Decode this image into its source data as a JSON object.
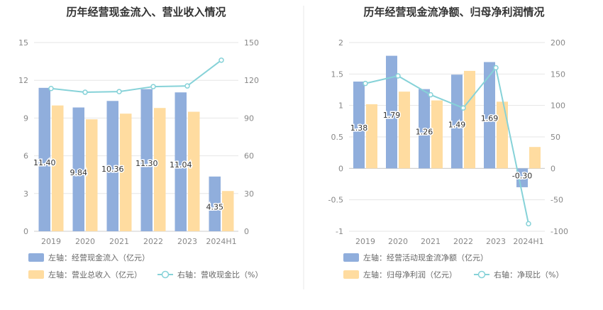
{
  "colors": {
    "bar_blue": "#90aedc",
    "bar_orange": "#ffdca0",
    "line": "#86d2d8",
    "divider": "#e8e8e8"
  },
  "chart_data": [
    {
      "type": "bar",
      "title": "历年经营现金流入、营业收入情况",
      "categories": [
        "2019",
        "2020",
        "2021",
        "2022",
        "2023",
        "2024H1"
      ],
      "left_axis": {
        "min": 0,
        "max": 15,
        "ticks": [
          "0",
          "3",
          "6",
          "9",
          "12",
          "15"
        ]
      },
      "right_axis": {
        "min": 0,
        "max": 150,
        "ticks": [
          "0",
          "30",
          "60",
          "90",
          "120",
          "150"
        ]
      },
      "series": [
        {
          "name": "左轴：经营现金流入（亿元）",
          "kind": "bar",
          "axis": "left",
          "values": [
            11.4,
            9.84,
            10.36,
            11.3,
            11.04,
            4.35
          ],
          "labels": [
            "11.40",
            "9.84",
            "10.36",
            "11.30",
            "11.04",
            "4.35"
          ]
        },
        {
          "name": "左轴：营业总收入（亿元）",
          "kind": "bar",
          "axis": "left",
          "values": [
            10.0,
            8.9,
            9.35,
            9.8,
            9.5,
            3.2
          ]
        },
        {
          "name": "右轴：营收现金比（%）",
          "kind": "line",
          "axis": "right",
          "values": [
            113.5,
            110.5,
            111.0,
            115.0,
            115.5,
            136.0
          ]
        }
      ],
      "legend_position": "bottom",
      "grid": true
    },
    {
      "type": "bar",
      "title": "历年经营现金流净额、归母净利润情况",
      "categories": [
        "2019",
        "2020",
        "2021",
        "2022",
        "2023",
        "2024H1"
      ],
      "left_axis": {
        "min": -1,
        "max": 2,
        "ticks": [
          "-1",
          "-0.5",
          "0",
          "0.5",
          "1",
          "1.5",
          "2"
        ]
      },
      "right_axis": {
        "min": -100,
        "max": 200,
        "ticks": [
          "-100",
          "-50",
          "0",
          "50",
          "100",
          "150",
          "200"
        ]
      },
      "series": [
        {
          "name": "左轴：经营活动现金流净额（亿元）",
          "kind": "bar",
          "axis": "left",
          "values": [
            1.38,
            1.79,
            1.26,
            1.49,
            1.69,
            -0.3
          ],
          "labels": [
            "1.38",
            "1.79",
            "1.26",
            "1.49",
            "1.69",
            "-0.30"
          ]
        },
        {
          "name": "左轴：归母净利润（亿元）",
          "kind": "bar",
          "axis": "left",
          "values": [
            1.02,
            1.22,
            1.08,
            1.55,
            1.06,
            0.34
          ]
        },
        {
          "name": "右轴：净现比（%）",
          "kind": "line",
          "axis": "right",
          "values": [
            135,
            147,
            117,
            96,
            160,
            -88
          ]
        }
      ],
      "legend_position": "bottom",
      "grid": true
    }
  ]
}
